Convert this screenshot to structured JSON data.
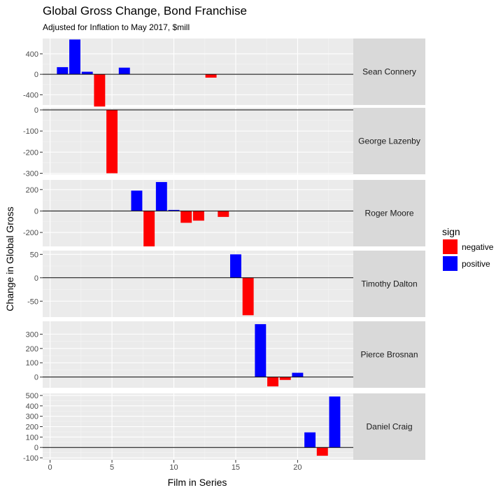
{
  "chart_data": {
    "type": "bar",
    "title": "Global Gross Change, Bond Franchise",
    "subtitle": "Adjusted for Inflation to May 2017, $mill",
    "xlabel": "Film in Series",
    "ylabel": "Change in Global Gross",
    "xlim": [
      -0.6,
      24.5
    ],
    "x_ticks": [
      0,
      5,
      10,
      15,
      20
    ],
    "legend": {
      "title": "sign",
      "position": "right",
      "entries": [
        {
          "label": "negative",
          "color": "#ff0000"
        },
        {
          "label": "positive",
          "color": "#0000ff"
        }
      ]
    },
    "facets": [
      {
        "label": "Sean Connery",
        "ylim": [
          -600,
          700
        ],
        "y_ticks": [
          -400,
          0,
          400
        ],
        "y_tick_labels": [
          "-400",
          "0",
          "400"
        ],
        "bars": [
          {
            "x": 1,
            "y": 140
          },
          {
            "x": 2,
            "y": 680
          },
          {
            "x": 3,
            "y": 50
          },
          {
            "x": 4,
            "y": -630
          },
          {
            "x": 6,
            "y": 130
          },
          {
            "x": 13,
            "y": -65
          }
        ]
      },
      {
        "label": "George Lazenby",
        "ylim": [
          -305,
          10
        ],
        "y_ticks": [
          -300,
          -200,
          -100,
          0
        ],
        "y_tick_labels": [
          "-300",
          "-200",
          "-100",
          "0"
        ],
        "bars": [
          {
            "x": 5,
            "y": -300
          }
        ]
      },
      {
        "label": "Roger Moore",
        "ylim": [
          -330,
          290
        ],
        "y_ticks": [
          -200,
          0,
          200
        ],
        "y_tick_labels": [
          "-200",
          "0",
          "200"
        ],
        "bars": [
          {
            "x": 7,
            "y": 190
          },
          {
            "x": 8,
            "y": -330
          },
          {
            "x": 9,
            "y": 270
          },
          {
            "x": 10,
            "y": 10
          },
          {
            "x": 11,
            "y": -110
          },
          {
            "x": 12,
            "y": -90
          },
          {
            "x": 14,
            "y": -55
          }
        ]
      },
      {
        "label": "Timothy Dalton",
        "ylim": [
          -84,
          58
        ],
        "y_ticks": [
          -50,
          0,
          50
        ],
        "y_tick_labels": [
          "-50",
          "0",
          "50"
        ],
        "bars": [
          {
            "x": 15,
            "y": 50
          },
          {
            "x": 16,
            "y": -80
          }
        ]
      },
      {
        "label": "Pierce Brosnan",
        "ylim": [
          -75,
          390
        ],
        "y_ticks": [
          0,
          100,
          200,
          300
        ],
        "y_tick_labels": [
          "0",
          "100",
          "200",
          "300"
        ],
        "bars": [
          {
            "x": 17,
            "y": 370
          },
          {
            "x": 18,
            "y": -65
          },
          {
            "x": 19,
            "y": -20
          },
          {
            "x": 20,
            "y": 30
          }
        ]
      },
      {
        "label": "Daniel Craig",
        "ylim": [
          -120,
          520
        ],
        "y_ticks": [
          -100,
          0,
          100,
          200,
          300,
          400,
          500
        ],
        "y_tick_labels": [
          "-100",
          "0",
          "100",
          "200",
          "300",
          "400",
          "500"
        ],
        "bars": [
          {
            "x": 21,
            "y": 145
          },
          {
            "x": 22,
            "y": -80
          },
          {
            "x": 23,
            "y": 490
          }
        ]
      }
    ]
  }
}
